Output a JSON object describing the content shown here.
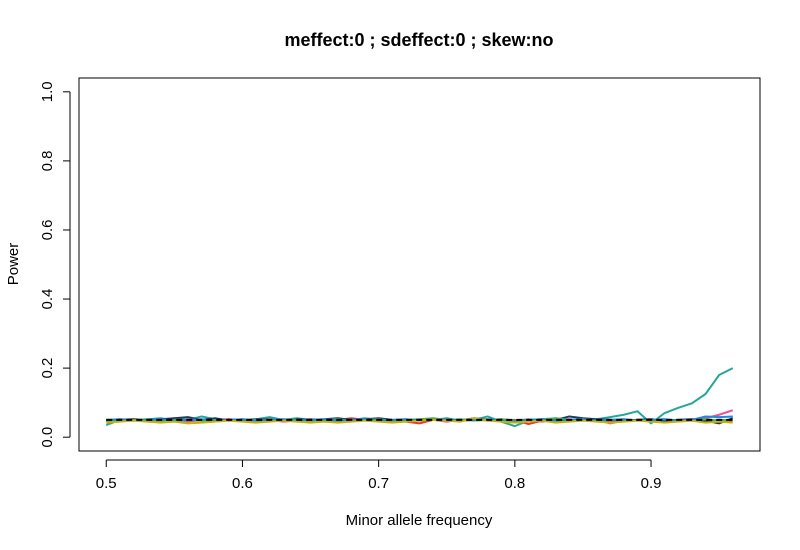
{
  "chart_data": {
    "type": "line",
    "title": "meffect:0 ; sdeffect:0 ; skew:no",
    "xlabel": "Minor allele frequency",
    "ylabel": "Power",
    "xlim": [
      0.48,
      0.98
    ],
    "ylim": [
      -0.04,
      1.04
    ],
    "xticks": [
      0.5,
      0.6,
      0.7,
      0.8,
      0.9
    ],
    "xtick_labels": [
      "0.5",
      "0.6",
      "0.7",
      "0.8",
      "0.9"
    ],
    "yticks": [
      0.0,
      0.2,
      0.4,
      0.6,
      0.8,
      1.0
    ],
    "ytick_labels": [
      "0.0",
      "0.2",
      "0.4",
      "0.6",
      "0.8",
      "1.0"
    ],
    "grid": false,
    "reference_line": {
      "y": 0.05,
      "style": "dashed",
      "color": "#000000"
    },
    "x": [
      0.5,
      0.51,
      0.52,
      0.53,
      0.54,
      0.55,
      0.56,
      0.57,
      0.58,
      0.59,
      0.6,
      0.61,
      0.62,
      0.63,
      0.64,
      0.65,
      0.66,
      0.67,
      0.68,
      0.69,
      0.7,
      0.71,
      0.72,
      0.73,
      0.74,
      0.75,
      0.76,
      0.77,
      0.78,
      0.79,
      0.8,
      0.81,
      0.82,
      0.83,
      0.84,
      0.85,
      0.86,
      0.87,
      0.88,
      0.89,
      0.9,
      0.91,
      0.92,
      0.93,
      0.94,
      0.95,
      0.96
    ],
    "series": [
      {
        "color": "#26A69A",
        "values": [
          0.035,
          0.05,
          0.048,
          0.052,
          0.055,
          0.048,
          0.05,
          0.06,
          0.052,
          0.05,
          0.048,
          0.052,
          0.058,
          0.05,
          0.055,
          0.05,
          0.048,
          0.052,
          0.05,
          0.055,
          0.05,
          0.048,
          0.05,
          0.052,
          0.05,
          0.055,
          0.048,
          0.05,
          0.06,
          0.045,
          0.032,
          0.048,
          0.05,
          0.055,
          0.05,
          0.048,
          0.052,
          0.058,
          0.065,
          0.075,
          0.04,
          0.07,
          0.085,
          0.098,
          0.125,
          0.18,
          0.2
        ]
      },
      {
        "color": "#E8559A",
        "values": [
          0.048,
          0.052,
          0.05,
          0.048,
          0.05,
          0.052,
          0.045,
          0.05,
          0.048,
          0.052,
          0.05,
          0.048,
          0.05,
          0.045,
          0.048,
          0.052,
          0.05,
          0.048,
          0.052,
          0.05,
          0.048,
          0.05,
          0.052,
          0.048,
          0.05,
          0.045,
          0.05,
          0.052,
          0.048,
          0.05,
          0.048,
          0.052,
          0.045,
          0.05,
          0.048,
          0.052,
          0.05,
          0.04,
          0.048,
          0.05,
          0.052,
          0.048,
          0.05,
          0.052,
          0.055,
          0.065,
          0.078
        ]
      },
      {
        "color": "#E53935",
        "values": [
          0.05,
          0.048,
          0.052,
          0.05,
          0.048,
          0.055,
          0.05,
          0.048,
          0.05,
          0.052,
          0.048,
          0.05,
          0.052,
          0.048,
          0.05,
          0.052,
          0.048,
          0.05,
          0.055,
          0.05,
          0.052,
          0.048,
          0.045,
          0.04,
          0.05,
          0.052,
          0.048,
          0.05,
          0.052,
          0.048,
          0.05,
          0.038,
          0.048,
          0.05,
          0.052,
          0.048,
          0.05,
          0.045,
          0.048,
          0.05,
          0.052,
          0.048,
          0.05,
          0.048,
          0.045,
          0.05,
          0.048
        ]
      },
      {
        "color": "#1E3A5F",
        "values": [
          0.048,
          0.05,
          0.052,
          0.05,
          0.052,
          0.055,
          0.058,
          0.05,
          0.055,
          0.048,
          0.05,
          0.052,
          0.05,
          0.048,
          0.052,
          0.05,
          0.052,
          0.055,
          0.05,
          0.052,
          0.055,
          0.05,
          0.048,
          0.05,
          0.052,
          0.05,
          0.048,
          0.055,
          0.05,
          0.052,
          0.048,
          0.05,
          0.052,
          0.05,
          0.06,
          0.055,
          0.052,
          0.05,
          0.048,
          0.05,
          0.052,
          0.048,
          0.05,
          0.052,
          0.048,
          0.04,
          0.055
        ]
      },
      {
        "color": "#4CAF50",
        "values": [
          0.045,
          0.048,
          0.05,
          0.052,
          0.048,
          0.05,
          0.052,
          0.048,
          0.05,
          0.048,
          0.052,
          0.05,
          0.048,
          0.052,
          0.05,
          0.048,
          0.05,
          0.052,
          0.048,
          0.05,
          0.052,
          0.048,
          0.05,
          0.052,
          0.055,
          0.05,
          0.052,
          0.048,
          0.05,
          0.052,
          0.048,
          0.05,
          0.052,
          0.055,
          0.05,
          0.052,
          0.048,
          0.05,
          0.052,
          0.048,
          0.05,
          0.052,
          0.048,
          0.05,
          0.052,
          0.048,
          0.05
        ]
      },
      {
        "color": "#1E88E5",
        "values": [
          0.05,
          0.052,
          0.048,
          0.05,
          0.052,
          0.048,
          0.05,
          0.052,
          0.048,
          0.05,
          0.052,
          0.048,
          0.05,
          0.052,
          0.048,
          0.05,
          0.052,
          0.048,
          0.05,
          0.052,
          0.048,
          0.05,
          0.052,
          0.048,
          0.05,
          0.052,
          0.048,
          0.05,
          0.052,
          0.048,
          0.045,
          0.05,
          0.052,
          0.048,
          0.05,
          0.052,
          0.048,
          0.05,
          0.052,
          0.048,
          0.05,
          0.052,
          0.048,
          0.05,
          0.06,
          0.058,
          0.06
        ]
      },
      {
        "color": "#C8B400",
        "values": [
          0.042,
          0.045,
          0.048,
          0.045,
          0.042,
          0.045,
          0.04,
          0.042,
          0.045,
          0.048,
          0.045,
          0.042,
          0.045,
          0.048,
          0.045,
          0.042,
          0.045,
          0.042,
          0.045,
          0.048,
          0.045,
          0.042,
          0.045,
          0.048,
          0.05,
          0.048,
          0.045,
          0.055,
          0.048,
          0.045,
          0.042,
          0.045,
          0.048,
          0.042,
          0.045,
          0.048,
          0.045,
          0.042,
          0.045,
          0.048,
          0.045,
          0.042,
          0.045,
          0.048,
          0.042,
          0.045,
          0.042
        ]
      }
    ]
  }
}
